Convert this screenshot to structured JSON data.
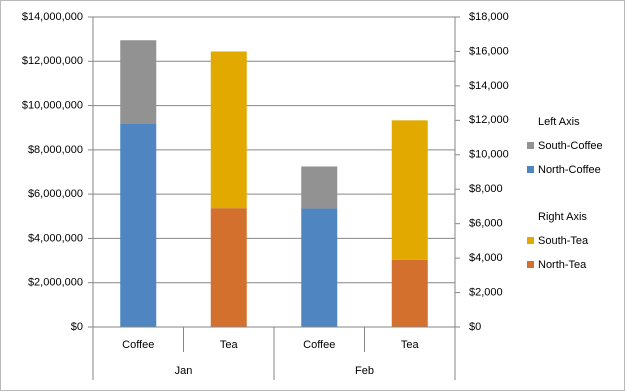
{
  "chart_data": {
    "type": "stacked-bar",
    "categories": [
      "Coffee",
      "Tea",
      "Coffee",
      "Tea"
    ],
    "category_groups": [
      {
        "label": "Jan",
        "span": 2
      },
      {
        "label": "Feb",
        "span": 2
      }
    ],
    "series": [
      {
        "name": "North-Coffee",
        "color": "#4f86c1",
        "axis": "y",
        "values": [
          9200000,
          null,
          5350000,
          null
        ]
      },
      {
        "name": "South-Coffee",
        "color": "#929292",
        "axis": "y",
        "values": [
          3750000,
          null,
          1900000,
          null
        ]
      },
      {
        "name": "North-Tea",
        "color": "#d4702d",
        "axis": "y2",
        "values": [
          null,
          6900,
          null,
          3900
        ]
      },
      {
        "name": "South-Tea",
        "color": "#e2a900",
        "axis": "y2",
        "values": [
          null,
          9100,
          null,
          8100
        ]
      }
    ],
    "legend_titles": {
      "y": "Left Axis",
      "y2": "Right Axis"
    },
    "ylim": [
      0,
      14000000
    ],
    "yticks": [
      {
        "value": 0,
        "label": "$0"
      },
      {
        "value": 2000000,
        "label": "$2,000,000"
      },
      {
        "value": 4000000,
        "label": "$4,000,000"
      },
      {
        "value": 6000000,
        "label": "$6,000,000"
      },
      {
        "value": 8000000,
        "label": "$8,000,000"
      },
      {
        "value": 10000000,
        "label": "$10,000,000"
      },
      {
        "value": 12000000,
        "label": "$12,000,000"
      },
      {
        "value": 14000000,
        "label": "$14,000,000"
      }
    ],
    "y2lim": [
      0,
      18000
    ],
    "y2ticks": [
      {
        "value": 0,
        "label": "$0"
      },
      {
        "value": 2000,
        "label": "$2,000"
      },
      {
        "value": 4000,
        "label": "$4,000"
      },
      {
        "value": 6000,
        "label": "$6,000"
      },
      {
        "value": 8000,
        "label": "$8,000"
      },
      {
        "value": 10000,
        "label": "$10,000"
      },
      {
        "value": 12000,
        "label": "$12,000"
      },
      {
        "value": 14000,
        "label": "$14,000"
      },
      {
        "value": 16000,
        "label": "$16,000"
      },
      {
        "value": 18000,
        "label": "$18,000"
      }
    ],
    "grid": true
  }
}
